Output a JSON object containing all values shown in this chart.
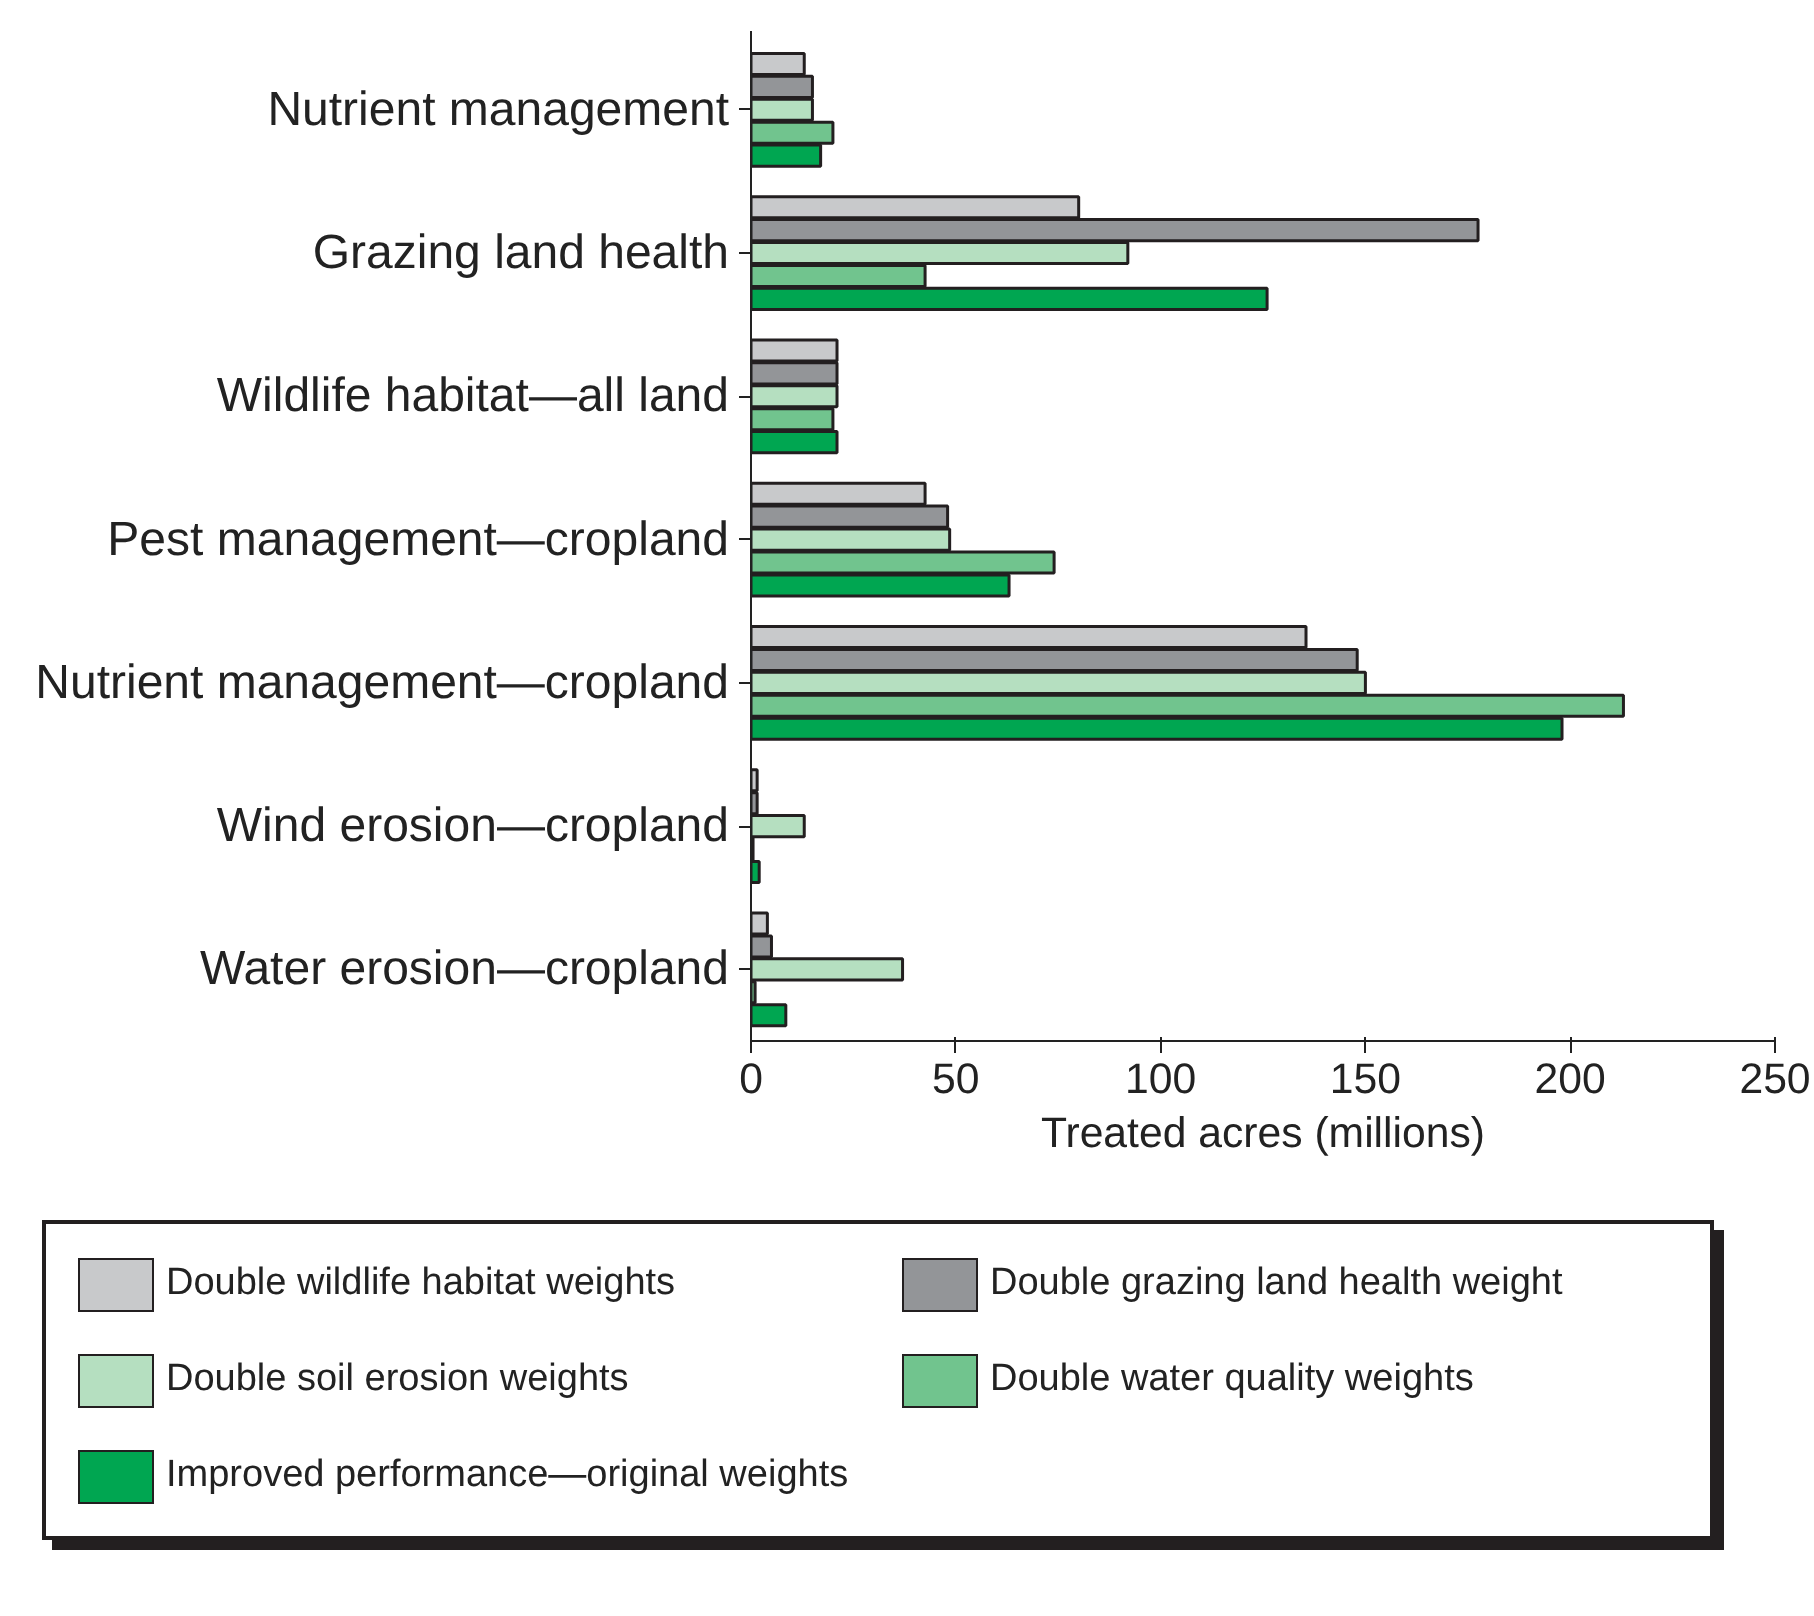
{
  "chart_data": {
    "type": "bar",
    "orientation": "horizontal",
    "xlabel": "Treated acres (millions)",
    "categories": [
      "Nutrient management",
      "Grazing land health",
      "Wildlife habitat—all land",
      "Pest management—cropland",
      "Nutrient management—cropland",
      "Wind erosion—cropland",
      "Water erosion—cropland"
    ],
    "series": [
      {
        "name": "Double wildlife habitat weights",
        "color": "#c8c9cb",
        "values": [
          13,
          80,
          21,
          42.5,
          135.5,
          1.5,
          4
        ]
      },
      {
        "name": "Double grazing land health weight",
        "color": "#939598",
        "values": [
          15,
          177.5,
          21,
          48,
          148,
          1.5,
          5
        ]
      },
      {
        "name": "Double soil erosion weights",
        "color": "#b5dfc0",
        "values": [
          15,
          92,
          21,
          48.5,
          150,
          13,
          37
        ]
      },
      {
        "name": "Double water quality weights",
        "color": "#71c48e",
        "values": [
          20,
          42.5,
          20,
          74,
          213,
          0.5,
          1
        ]
      },
      {
        "name": "Improved performance—original weights",
        "color": "#00a651",
        "values": [
          17,
          126,
          21,
          63,
          198,
          2,
          8.5
        ]
      }
    ],
    "xlim": [
      0,
      250
    ],
    "xticks": [
      0,
      50,
      100,
      150,
      200,
      250
    ],
    "grid": false,
    "legend": "bottom"
  }
}
